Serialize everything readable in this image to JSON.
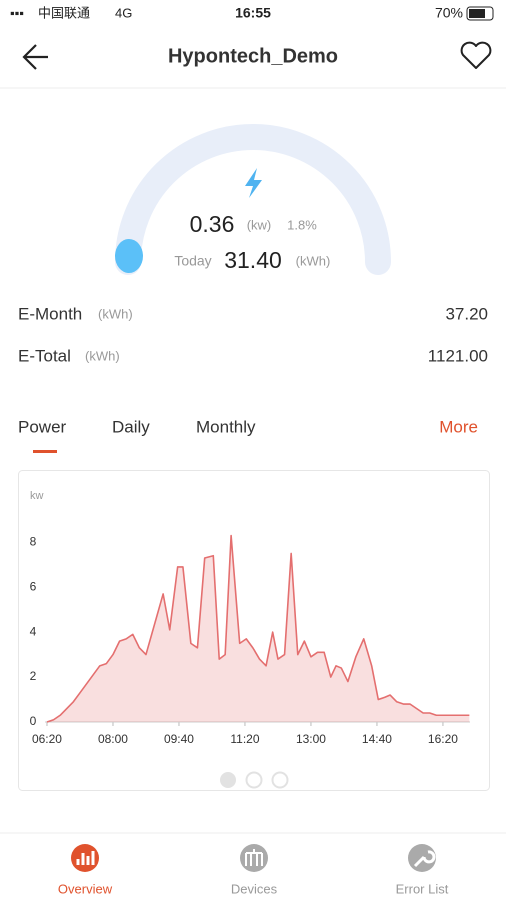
{
  "status_bar": {
    "carrier": "中国联通",
    "network": "4G",
    "time": "16:55",
    "battery": "70%"
  },
  "header": {
    "title": "Hypontech_Demo"
  },
  "gauge": {
    "power": "0.36",
    "power_unit": "(kw)",
    "percent": "1.8%",
    "today_label": "Today",
    "today": "31.40",
    "today_unit": "(kWh)"
  },
  "stats": [
    {
      "label": "E-Month",
      "unit": "(kWh)",
      "value": "37.20"
    },
    {
      "label": "E-Total",
      "unit": "(kWh)",
      "value": "1121.00"
    }
  ],
  "tabs": [
    "Power",
    "Daily",
    "Monthly"
  ],
  "more": "More",
  "chart_data": {
    "type": "line",
    "y_label": "kw",
    "color": "#e46f6f",
    "x": [
      380,
      390,
      400,
      410,
      420,
      430,
      440,
      450,
      460,
      470,
      480,
      490,
      500,
      510,
      520,
      530,
      556,
      566,
      578,
      586,
      598,
      608,
      619,
      632,
      641,
      650,
      659,
      672,
      682,
      692,
      702,
      712,
      722,
      730,
      740,
      750,
      760,
      770,
      780,
      790,
      800,
      810,
      818,
      826,
      836,
      848,
      860,
      872,
      882,
      892,
      900,
      910,
      920,
      930,
      940,
      950,
      960,
      970,
      1000,
      1020
    ],
    "values": [
      0,
      0.1,
      0.3,
      0.6,
      0.9,
      1.3,
      1.7,
      2.1,
      2.5,
      2.6,
      3.0,
      3.6,
      3.7,
      3.9,
      3.3,
      3.0,
      5.7,
      4.1,
      6.9,
      6.9,
      3.5,
      3.3,
      7.3,
      7.4,
      2.8,
      3.0,
      8.3,
      3.5,
      3.7,
      3.3,
      2.8,
      2.5,
      4.0,
      2.8,
      3.0,
      7.5,
      3.0,
      3.6,
      2.9,
      3.1,
      3.1,
      2.0,
      2.5,
      2.4,
      1.8,
      2.9,
      3.7,
      2.5,
      1.0,
      1.1,
      1.2,
      0.9,
      0.8,
      0.8,
      0.6,
      0.4,
      0.4,
      0.3,
      0.3,
      0.3
    ],
    "xlim": [
      377,
      1021
    ],
    "ylim": [
      0,
      8.5
    ],
    "xticks": [
      {
        "value": 380,
        "label": "06:20"
      },
      {
        "value": 480,
        "label": "08:00"
      },
      {
        "value": 580,
        "label": "09:40"
      },
      {
        "value": 680,
        "label": "11:20"
      },
      {
        "value": 780,
        "label": "13:00"
      },
      {
        "value": 880,
        "label": "14:40"
      },
      {
        "value": 980,
        "label": "16:20"
      }
    ],
    "yticks": [
      0,
      2,
      4,
      6,
      8
    ]
  },
  "nav": [
    "Overview",
    "Devices",
    "Error List"
  ]
}
